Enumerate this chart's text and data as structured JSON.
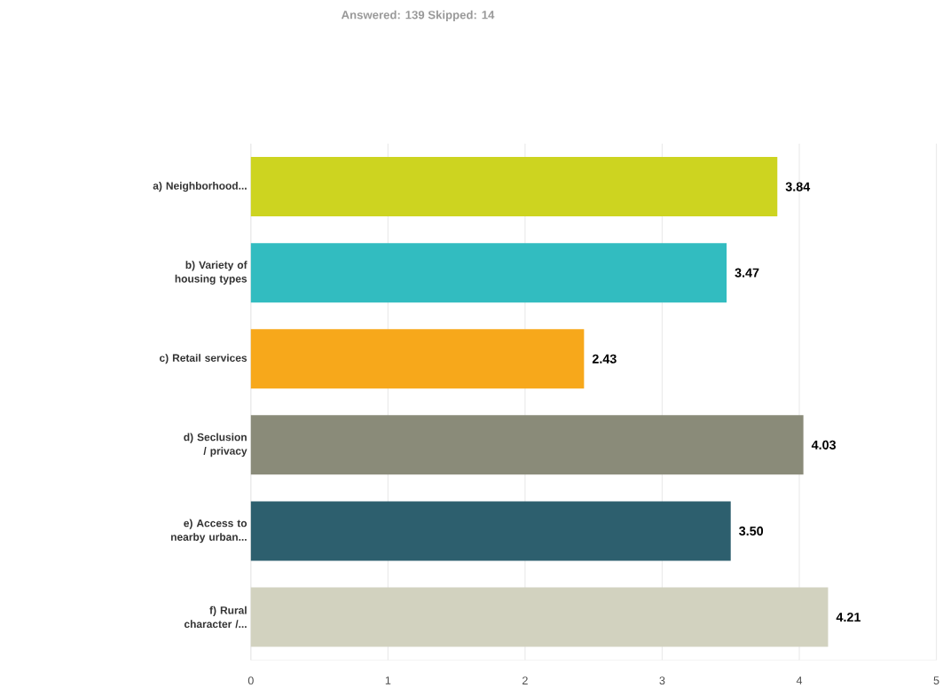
{
  "chart_data": {
    "type": "bar",
    "orientation": "horizontal",
    "title": "Answered: 139    Skipped: 14",
    "categories": [
      "a) Neighborhood...",
      "b) Variety of housing types",
      "c) Retail services",
      "d) Seclusion / privacy",
      "e) Access to nearby urban...",
      "f) Rural character /..."
    ],
    "values": [
      3.84,
      3.47,
      2.43,
      4.03,
      3.5,
      4.21
    ],
    "colors": [
      "#cdd420",
      "#32bcc0",
      "#f7a81b",
      "#8a8b79",
      "#2d5f6e",
      "#d2d2bf"
    ],
    "value_labels": [
      "3.84",
      "3.47",
      "2.43",
      "4.03",
      "3.50",
      "4.21"
    ],
    "xlim": [
      0,
      5
    ],
    "xticks": [
      0,
      1,
      2,
      3,
      4,
      5
    ],
    "grid": "x"
  }
}
